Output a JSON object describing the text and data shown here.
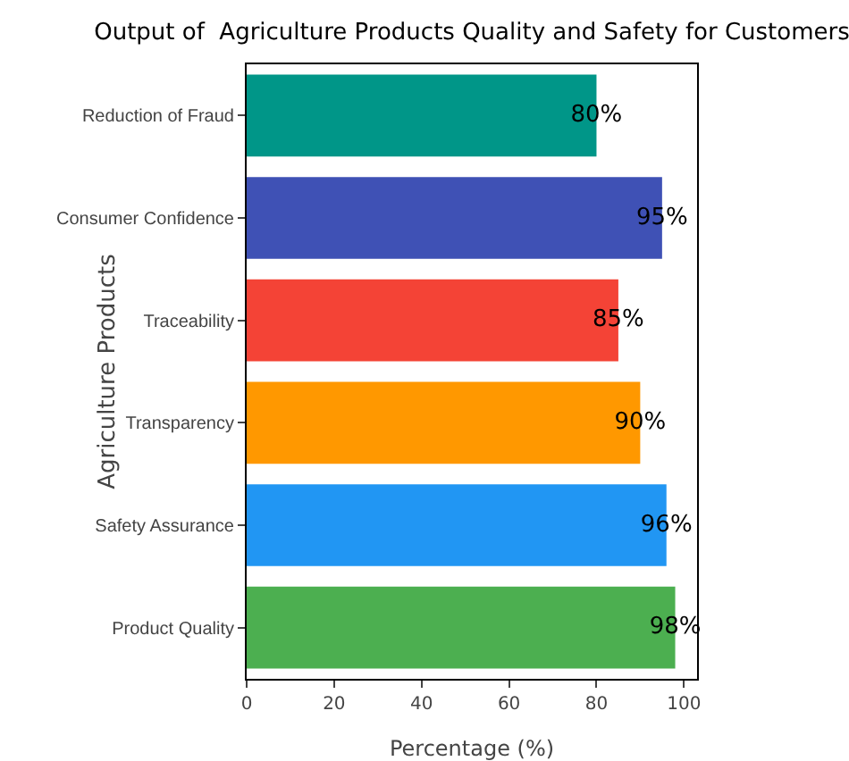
{
  "chart_data": {
    "type": "bar",
    "orientation": "horizontal",
    "title": "Output of  Agriculture Products Quality and Safety for Customers",
    "xlabel": "Percentage (%)",
    "ylabel": "Agriculture Products",
    "categories": [
      "Reduction of Fraud",
      "Consumer Confidence",
      "Traceability",
      "Transparency",
      "Safety Assurance",
      "Product Quality"
    ],
    "values": [
      80,
      95,
      85,
      90,
      96,
      98
    ],
    "colors": [
      "#009688",
      "#3f51b5",
      "#f44336",
      "#ff9800",
      "#2196f3",
      "#4caf50"
    ],
    "value_labels": [
      "80%",
      "95%",
      "85%",
      "90%",
      "96%",
      "98%"
    ],
    "xlim": [
      0,
      103
    ],
    "xticks": [
      0,
      20,
      40,
      60,
      80,
      100
    ]
  }
}
